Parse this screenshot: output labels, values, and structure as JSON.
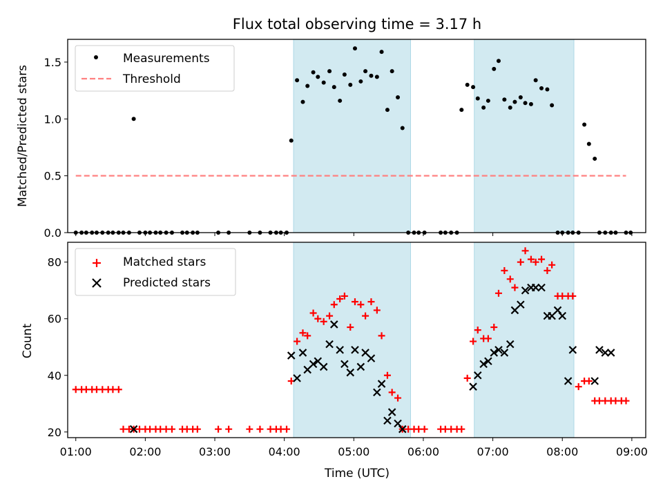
{
  "figure": {
    "title": "Flux total observing time = 3.17 h",
    "xlabel": "Time (UTC)"
  },
  "colors": {
    "shade": "#add8e6",
    "threshold": "#ff8080",
    "matched": "#ff0000",
    "predicted": "#000000",
    "measure": "#000000"
  },
  "chart_data": [
    {
      "type": "scatter",
      "ylabel": "Matched/Predicted stars",
      "xlim": [
        "00:53",
        "09:12"
      ],
      "ylim": [
        0,
        1.7
      ],
      "y_ticks": [
        "0.0",
        "0.5",
        "1.0",
        "1.5"
      ],
      "x_ticks": [
        "01:00",
        "02:00",
        "03:00",
        "04:00",
        "05:00",
        "06:00",
        "07:00",
        "08:00",
        "09:00"
      ],
      "shaded_intervals": [
        [
          "04:08",
          "05:49"
        ],
        [
          "06:44",
          "08:10"
        ]
      ],
      "legend_position": "upper left",
      "threshold": {
        "name": "Threshold",
        "style": "dashed",
        "x_start": "01:00",
        "x_end": "08:55",
        "value": 0.5
      },
      "series": [
        {
          "name": "Measurements",
          "marker": "dot",
          "x": [
            "01:00",
            "01:05",
            "01:09",
            "01:14",
            "01:18",
            "01:23",
            "01:28",
            "01:32",
            "01:37",
            "01:41",
            "01:46",
            "01:50",
            "01:55",
            "02:00",
            "02:04",
            "02:09",
            "02:13",
            "02:18",
            "02:23",
            "02:32",
            "02:36",
            "02:41",
            "02:45",
            "03:03",
            "03:12",
            "03:30",
            "03:39",
            "03:48",
            "03:53",
            "03:57",
            "04:02",
            "04:06",
            "04:11",
            "04:16",
            "04:20",
            "04:25",
            "04:29",
            "04:34",
            "04:39",
            "04:43",
            "04:48",
            "04:52",
            "04:57",
            "05:01",
            "05:06",
            "05:10",
            "05:15",
            "05:20",
            "05:24",
            "05:29",
            "05:33",
            "05:38",
            "05:42",
            "05:47",
            "05:52",
            "05:56",
            "06:01",
            "06:15",
            "06:19",
            "06:24",
            "06:29",
            "06:33",
            "06:38",
            "06:43",
            "06:47",
            "06:52",
            "06:56",
            "07:01",
            "07:05",
            "07:10",
            "07:15",
            "07:19",
            "07:24",
            "07:28",
            "07:33",
            "07:37",
            "07:42",
            "07:47",
            "07:51",
            "07:56",
            "08:00",
            "08:05",
            "08:09",
            "08:14",
            "08:19",
            "08:23",
            "08:28",
            "08:32",
            "08:37",
            "08:42",
            "08:46",
            "08:55",
            "08:59"
          ],
          "y": [
            0,
            0,
            0,
            0,
            0,
            0,
            0,
            0,
            0,
            0,
            0,
            1.0,
            0,
            0,
            0,
            0,
            0,
            0,
            0,
            0,
            0,
            0,
            0,
            0,
            0,
            0,
            0,
            0,
            0,
            0,
            0,
            0.81,
            1.34,
            1.15,
            1.29,
            1.41,
            1.37,
            1.32,
            1.42,
            1.28,
            1.16,
            1.39,
            1.3,
            1.62,
            1.33,
            1.42,
            1.38,
            1.37,
            1.59,
            1.08,
            1.42,
            1.19,
            0.92,
            0,
            0,
            0,
            0,
            0,
            0,
            0,
            0,
            1.08,
            1.3,
            1.28,
            1.18,
            1.1,
            1.16,
            1.44,
            1.51,
            1.17,
            1.1,
            1.15,
            1.19,
            1.14,
            1.13,
            1.34,
            1.27,
            1.26,
            1.12,
            0,
            0,
            0,
            0,
            0,
            0.95,
            0.78,
            0.65,
            0,
            0,
            0,
            0,
            0,
            0
          ]
        }
      ]
    },
    {
      "type": "scatter",
      "ylabel": "Count",
      "xlim": [
        "00:53",
        "09:12"
      ],
      "ylim": [
        18,
        87
      ],
      "y_ticks": [
        "20",
        "40",
        "60",
        "80"
      ],
      "x_ticks": [
        "01:00",
        "02:00",
        "03:00",
        "04:00",
        "05:00",
        "06:00",
        "07:00",
        "08:00",
        "09:00"
      ],
      "shaded_intervals": [
        [
          "04:08",
          "05:49"
        ],
        [
          "06:44",
          "08:10"
        ]
      ],
      "legend_position": "upper left",
      "series": [
        {
          "name": "Matched stars",
          "marker": "plus",
          "x": [
            "01:00",
            "01:05",
            "01:09",
            "01:14",
            "01:18",
            "01:23",
            "01:28",
            "01:32",
            "01:37",
            "01:41",
            "01:46",
            "01:50",
            "01:55",
            "02:00",
            "02:04",
            "02:09",
            "02:13",
            "02:18",
            "02:23",
            "02:32",
            "02:36",
            "02:41",
            "02:45",
            "03:03",
            "03:12",
            "03:30",
            "03:39",
            "03:48",
            "03:53",
            "03:57",
            "04:02",
            "04:06",
            "04:11",
            "04:16",
            "04:20",
            "04:25",
            "04:29",
            "04:34",
            "04:39",
            "04:43",
            "04:48",
            "04:52",
            "04:57",
            "05:01",
            "05:06",
            "05:10",
            "05:15",
            "05:20",
            "05:24",
            "05:29",
            "05:33",
            "05:38",
            "05:42",
            "05:47",
            "05:52",
            "05:56",
            "06:01",
            "06:15",
            "06:19",
            "06:24",
            "06:29",
            "06:33",
            "06:38",
            "06:43",
            "06:47",
            "06:52",
            "06:56",
            "07:01",
            "07:05",
            "07:10",
            "07:15",
            "07:19",
            "07:24",
            "07:28",
            "07:33",
            "07:37",
            "07:42",
            "07:47",
            "07:51",
            "07:56",
            "08:00",
            "08:05",
            "08:09",
            "08:14",
            "08:19",
            "08:23",
            "08:28",
            "08:32",
            "08:37",
            "08:42",
            "08:46",
            "08:51",
            "08:55"
          ],
          "y": [
            35,
            35,
            35,
            35,
            35,
            35,
            35,
            35,
            35,
            21,
            21,
            21,
            21,
            21,
            21,
            21,
            21,
            21,
            21,
            21,
            21,
            21,
            21,
            21,
            21,
            21,
            21,
            21,
            21,
            21,
            21,
            38,
            52,
            55,
            54,
            62,
            60,
            59,
            61,
            65,
            67,
            68,
            57,
            66,
            65,
            61,
            66,
            63,
            54,
            40,
            34,
            32,
            21,
            21,
            21,
            21,
            21,
            21,
            21,
            21,
            21,
            21,
            39,
            52,
            56,
            53,
            53,
            57,
            69,
            77,
            74,
            71,
            80,
            84,
            81,
            80,
            81,
            77,
            79,
            68,
            68,
            68,
            68,
            36,
            38,
            38,
            31,
            31,
            31,
            31,
            31,
            31,
            31
          ]
        },
        {
          "name": "Predicted stars",
          "marker": "x",
          "x": [
            "01:50",
            "04:06",
            "04:11",
            "04:16",
            "04:20",
            "04:25",
            "04:29",
            "04:34",
            "04:39",
            "04:43",
            "04:48",
            "04:52",
            "04:57",
            "05:01",
            "05:06",
            "05:10",
            "05:15",
            "05:20",
            "05:24",
            "05:29",
            "05:33",
            "05:38",
            "05:42",
            "06:43",
            "06:47",
            "06:52",
            "06:56",
            "07:01",
            "07:05",
            "07:10",
            "07:15",
            "07:19",
            "07:24",
            "07:28",
            "07:33",
            "07:37",
            "07:42",
            "07:47",
            "07:51",
            "07:56",
            "08:00",
            "08:05",
            "08:09",
            "08:28",
            "08:32",
            "08:37",
            "08:42"
          ],
          "y": [
            21,
            47,
            39,
            48,
            42,
            44,
            45,
            43,
            51,
            58,
            49,
            44,
            41,
            49,
            43,
            48,
            46,
            34,
            37,
            24,
            27,
            23,
            21,
            36,
            40,
            44,
            45,
            48,
            49,
            48,
            51,
            63,
            65,
            70,
            71,
            71,
            71,
            61,
            61,
            63,
            61,
            38,
            49,
            38,
            49,
            48,
            48
          ]
        }
      ]
    }
  ]
}
